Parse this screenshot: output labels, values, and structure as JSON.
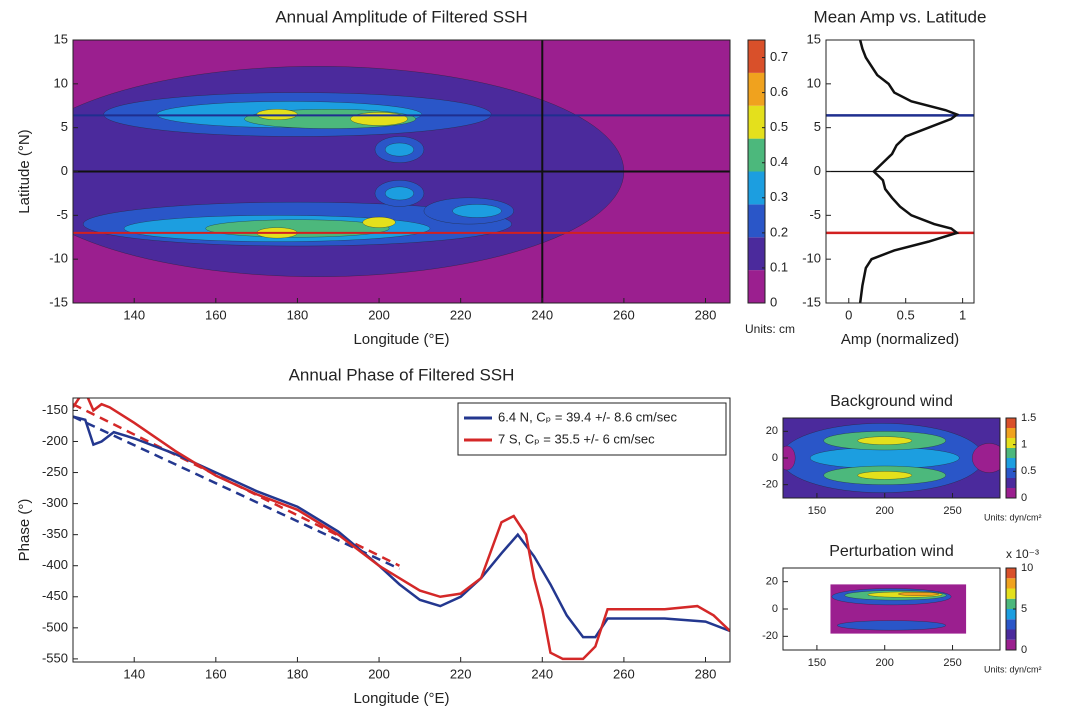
{
  "chart_data": [
    {
      "type": "contour",
      "title": "Annual Amplitude of Filtered SSH",
      "xlabel": "Longitude (°E)",
      "ylabel": "Latitude (°N)",
      "xlim": [
        125,
        286
      ],
      "ylim": [
        -15,
        15
      ],
      "xticks": [
        140,
        160,
        180,
        200,
        220,
        240,
        260,
        280
      ],
      "yticks": [
        -15,
        -10,
        -5,
        0,
        5,
        10,
        15
      ],
      "colormap": [
        "#9b1f8f",
        "#4b2a9c",
        "#2a56c8",
        "#1c9ee0",
        "#4cb87c",
        "#e4e01c",
        "#f0a21e",
        "#d9502a"
      ],
      "colorbar": {
        "lim": [
          0,
          0.75
        ],
        "ticks": [
          0,
          0.1,
          0.2,
          0.3,
          0.4,
          0.5,
          0.6,
          0.7
        ],
        "units": "Units: cm"
      },
      "background_value": 0.05,
      "blobs": [
        {
          "lon": 185,
          "lat": 0,
          "dlon": 150,
          "dlat": 24,
          "value": 0.1
        },
        {
          "lon": 180,
          "lat": 6.5,
          "dlon": 95,
          "dlat": 5,
          "value": 0.2
        },
        {
          "lon": 180,
          "lat": -6,
          "dlon": 105,
          "dlat": 5,
          "value": 0.2
        },
        {
          "lon": 205,
          "lat": 2.5,
          "dlon": 12,
          "dlat": 3,
          "value": 0.2
        },
        {
          "lon": 205,
          "lat": -2.5,
          "dlon": 12,
          "dlat": 3,
          "value": 0.2
        },
        {
          "lon": 222,
          "lat": -4.5,
          "dlon": 22,
          "dlat": 3,
          "value": 0.2
        },
        {
          "lon": 178,
          "lat": 6.5,
          "dlon": 65,
          "dlat": 3,
          "value": 0.3
        },
        {
          "lon": 175,
          "lat": -6.5,
          "dlon": 75,
          "dlat": 3,
          "value": 0.3
        },
        {
          "lon": 205,
          "lat": 2.5,
          "dlon": 7,
          "dlat": 1.5,
          "value": 0.3
        },
        {
          "lon": 205,
          "lat": -2.5,
          "dlon": 7,
          "dlat": 1.5,
          "value": 0.3
        },
        {
          "lon": 224,
          "lat": -4.5,
          "dlon": 12,
          "dlat": 1.5,
          "value": 0.35
        },
        {
          "lon": 188,
          "lat": 6,
          "dlon": 42,
          "dlat": 2.2,
          "value": 0.4
        },
        {
          "lon": 180,
          "lat": -6.5,
          "dlon": 45,
          "dlat": 2,
          "value": 0.4
        },
        {
          "lon": 200,
          "lat": 6,
          "dlon": 14,
          "dlat": 1.5,
          "value": 0.5
        },
        {
          "lon": 175,
          "lat": 6.5,
          "dlon": 10,
          "dlat": 1.2,
          "value": 0.5
        },
        {
          "lon": 175,
          "lat": -7,
          "dlon": 10,
          "dlat": 1.2,
          "value": 0.5
        },
        {
          "lon": 200,
          "lat": -5.8,
          "dlon": 8,
          "dlat": 1.2,
          "value": 0.5
        }
      ],
      "hlines": [
        {
          "value": 6.4,
          "color": "#1f2f8f"
        },
        {
          "value": 0,
          "color": "#111111"
        },
        {
          "value": -7,
          "color": "#d22020"
        }
      ],
      "vlines": [
        {
          "value": 240,
          "color": "#111111"
        }
      ]
    },
    {
      "type": "profile",
      "title": "Mean Amp vs. Latitude",
      "xlabel": "Amp (normalized)",
      "xlim": [
        -0.2,
        1.1
      ],
      "ylim": [
        -15,
        15
      ],
      "xticks": [
        0,
        0.5,
        1
      ],
      "yticks": [
        -15,
        -10,
        -5,
        0,
        5,
        10,
        15
      ],
      "color": "#111111",
      "latitude": [
        -15,
        -13,
        -11,
        -10,
        -9,
        -8,
        -7,
        -6.5,
        -6,
        -5,
        -4,
        -3,
        -2,
        -1,
        0,
        1,
        2,
        3,
        4,
        5,
        6,
        6.5,
        7,
        8,
        9,
        10,
        11,
        12,
        13,
        14,
        15
      ],
      "values": [
        0.1,
        0.12,
        0.15,
        0.2,
        0.4,
        0.7,
        0.95,
        0.9,
        0.75,
        0.55,
        0.45,
        0.38,
        0.32,
        0.3,
        0.22,
        0.3,
        0.38,
        0.42,
        0.5,
        0.7,
        0.9,
        0.95,
        0.85,
        0.55,
        0.4,
        0.35,
        0.25,
        0.2,
        0.15,
        0.12,
        0.1
      ],
      "hlines": [
        {
          "value": 6.4,
          "color": "#1f2f8f"
        },
        {
          "value": 0,
          "color": "#111111"
        },
        {
          "value": -7,
          "color": "#d22020"
        }
      ]
    },
    {
      "type": "line",
      "title": "Annual Phase of Filtered SSH",
      "xlabel": "Longitude (°E)",
      "ylabel": "Phase (°)",
      "xlim": [
        125,
        286
      ],
      "ylim": [
        -555,
        -130
      ],
      "xticks": [
        140,
        160,
        180,
        200,
        220,
        240,
        260,
        280
      ],
      "yticks": [
        -550,
        -500,
        -450,
        -400,
        -350,
        -300,
        -250,
        -200,
        -150
      ],
      "legend": "upper right",
      "series": [
        {
          "name": "6.4 N, Cₚ = 39.4 +/- 8.6 cm/sec",
          "color": "#23378f",
          "x": [
            125,
            128,
            130,
            132,
            135,
            140,
            150,
            160,
            170,
            180,
            190,
            200,
            205,
            210,
            215,
            220,
            225,
            230,
            234,
            238,
            242,
            246,
            250,
            253,
            256,
            260,
            270,
            280,
            286
          ],
          "values": [
            -160,
            -165,
            -205,
            -200,
            -185,
            -195,
            -220,
            -250,
            -280,
            -305,
            -345,
            -400,
            -430,
            -455,
            -465,
            -450,
            -420,
            -380,
            -350,
            -385,
            -430,
            -480,
            -515,
            -515,
            -485,
            -485,
            -485,
            -490,
            -505
          ]
        },
        {
          "name": "7 S, Cₚ = 35.5 +/- 6 cm/sec",
          "color": "#d42828",
          "x": [
            125,
            127,
            128,
            130,
            132,
            134,
            140,
            150,
            160,
            170,
            180,
            190,
            200,
            205,
            210,
            215,
            220,
            225,
            230,
            233,
            236,
            238,
            240,
            242,
            245,
            250,
            253,
            256,
            260,
            270,
            278,
            282,
            286
          ],
          "values": [
            -145,
            -125,
            -120,
            -150,
            -140,
            -145,
            -170,
            -215,
            -255,
            -285,
            -310,
            -350,
            -400,
            -420,
            -440,
            -450,
            -445,
            -420,
            -330,
            -320,
            -350,
            -420,
            -470,
            -540,
            -550,
            -550,
            -530,
            -470,
            -470,
            -470,
            -465,
            -480,
            -505
          ]
        }
      ],
      "fits": [
        {
          "color": "#23378f",
          "x": [
            125,
            205
          ],
          "values": [
            -160,
            -405
          ]
        },
        {
          "color": "#d42828",
          "x": [
            125,
            205
          ],
          "values": [
            -140,
            -400
          ]
        }
      ]
    },
    {
      "type": "contour",
      "title": "Background wind",
      "xlim": [
        125,
        285
      ],
      "ylim": [
        -30,
        30
      ],
      "xticks": [
        150,
        200,
        250
      ],
      "yticks": [
        -20,
        0,
        20
      ],
      "colormap": [
        "#9b1f8f",
        "#4b2a9c",
        "#2a56c8",
        "#1c9ee0",
        "#4cb87c",
        "#e4e01c",
        "#f0a21e",
        "#d9502a"
      ],
      "colorbar": {
        "lim": [
          0,
          1.5
        ],
        "ticks": [
          0,
          0.5,
          1,
          1.5
        ],
        "units": "Units: dyn/cm²"
      },
      "background_value": 0.25,
      "blobs": [
        {
          "lon": 198,
          "lat": 0,
          "dlon": 150,
          "dlat": 52,
          "value": 0.45
        },
        {
          "lon": 200,
          "lat": 0,
          "dlon": 110,
          "dlat": 16,
          "value": 0.6
        },
        {
          "lon": 200,
          "lat": 13,
          "dlon": 90,
          "dlat": 14,
          "value": 0.85
        },
        {
          "lon": 200,
          "lat": -13,
          "dlon": 90,
          "dlat": 14,
          "value": 0.85
        },
        {
          "lon": 200,
          "lat": 13,
          "dlon": 40,
          "dlat": 6,
          "value": 0.95
        },
        {
          "lon": 200,
          "lat": -13,
          "dlon": 40,
          "dlat": 6,
          "value": 0.95
        },
        {
          "lon": 277,
          "lat": 0,
          "dlon": 25,
          "dlat": 22,
          "value": 0.1
        },
        {
          "lon": 128,
          "lat": 0,
          "dlon": 12,
          "dlat": 18,
          "value": 0.1
        }
      ]
    },
    {
      "type": "contour",
      "title": "Perturbation wind",
      "multiplier": "x 10⁻³",
      "xlim": [
        125,
        285
      ],
      "ylim": [
        -30,
        30
      ],
      "xticks": [
        150,
        200,
        250
      ],
      "yticks": [
        -20,
        0,
        20
      ],
      "colormap": [
        "#9b1f8f",
        "#4b2a9c",
        "#2a56c8",
        "#1c9ee0",
        "#4cb87c",
        "#e4e01c",
        "#f0a21e",
        "#d9502a"
      ],
      "colorbar": {
        "lim": [
          0,
          10
        ],
        "ticks": [
          0,
          5,
          10
        ],
        "units": "Units: dyn/cm²"
      },
      "domain": {
        "lon": [
          160,
          260
        ],
        "lat": [
          -18,
          18
        ]
      },
      "background_value": 0.5,
      "blobs": [
        {
          "lon": 205,
          "lat": 9,
          "dlon": 88,
          "dlat": 12,
          "value": 3
        },
        {
          "lon": 205,
          "lat": -12,
          "dlon": 80,
          "dlat": 7,
          "value": 2.8
        },
        {
          "lon": 208,
          "lat": 10,
          "dlon": 75,
          "dlat": 7,
          "value": 5.5
        },
        {
          "lon": 215,
          "lat": 10.5,
          "dlon": 55,
          "dlat": 4,
          "value": 7
        },
        {
          "lon": 225,
          "lat": 11,
          "dlon": 30,
          "dlat": 2.5,
          "value": 8.5
        }
      ]
    }
  ]
}
